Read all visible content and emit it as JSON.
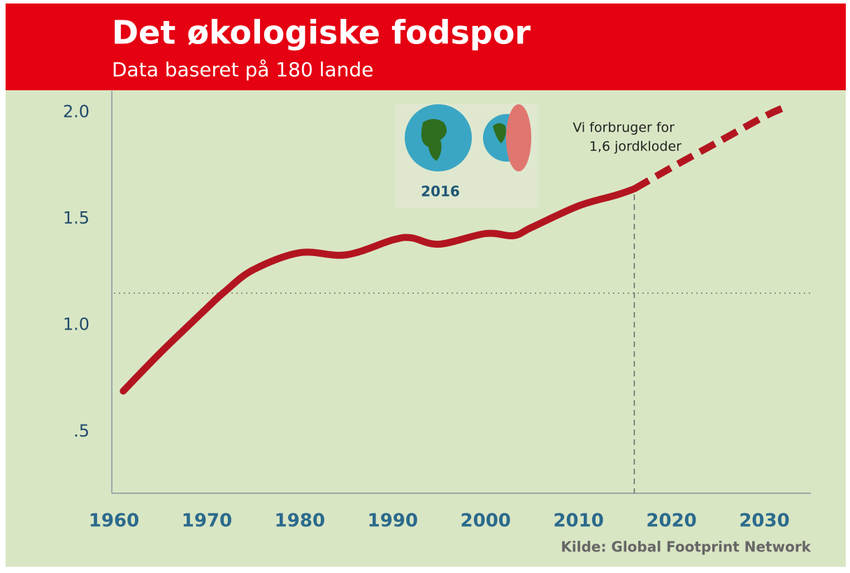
{
  "chart_data": {
    "type": "line",
    "title": "Det økologiske fodspor",
    "subtitle": "Data baseret på 180 lande",
    "source": "Kilde: Global Footprint Network",
    "annotation": [
      "Vi forbruger for",
      "1,6 jordkloder"
    ],
    "image_label": "2016",
    "x": [
      1961,
      1965,
      1970,
      1972,
      1975,
      1980,
      1985,
      1990,
      1992,
      1995,
      2000,
      2003,
      2005,
      2010,
      2014,
      2016,
      2020,
      2025,
      2030,
      2032
    ],
    "series": [
      {
        "color": "#b31520",
        "dashed": false,
        "values": [
          0.69,
          0.87,
          1.08,
          1.16,
          1.26,
          1.34,
          1.33,
          1.4,
          1.41,
          1.38,
          1.43,
          1.42,
          1.46,
          1.56,
          1.61,
          1.64,
          null,
          null,
          null,
          null
        ]
      },
      {
        "color": "#b31520",
        "dashed": true,
        "values": [
          null,
          null,
          null,
          null,
          null,
          null,
          null,
          null,
          null,
          null,
          null,
          null,
          null,
          null,
          null,
          1.64,
          1.74,
          1.86,
          1.98,
          2.02
        ]
      }
    ],
    "xlim": [
      1960,
      2035
    ],
    "ylim": [
      0.21,
      2.1
    ],
    "xticks": [
      1960,
      1970,
      1980,
      1990,
      2000,
      2010,
      2020,
      2030
    ],
    "yticks": [
      {
        "value": 0.5,
        "label": ".5"
      },
      {
        "value": 1,
        "label": "1.0"
      },
      1.5,
      {
        "value": 2,
        "label": "2.0"
      }
    ],
    "hline": 1.15,
    "vline": 2016
  }
}
